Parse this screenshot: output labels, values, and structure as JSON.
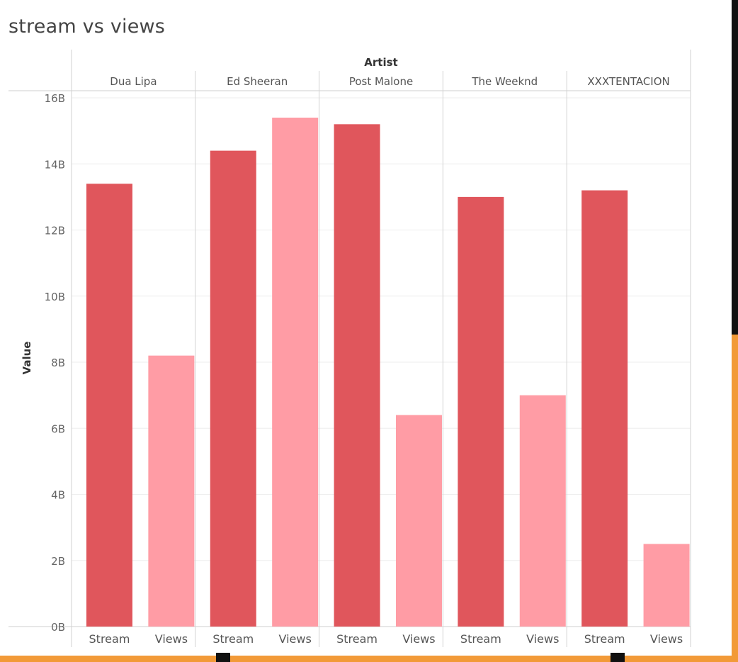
{
  "title": "stream vs views",
  "chart_data": {
    "type": "bar",
    "title": "stream vs views",
    "column_header": "Artist",
    "ylabel": "Value",
    "ylim": [
      0,
      16
    ],
    "yticks": [
      "0B",
      "2B",
      "4B",
      "6B",
      "8B",
      "10B",
      "12B",
      "14B",
      "16B"
    ],
    "measures": [
      "Stream",
      "Views"
    ],
    "groups": [
      {
        "artist": "Dua Lipa",
        "values": [
          13.4,
          8.2
        ]
      },
      {
        "artist": "Ed Sheeran",
        "values": [
          14.4,
          15.4
        ]
      },
      {
        "artist": "Post Malone",
        "values": [
          15.2,
          6.4
        ]
      },
      {
        "artist": "The Weeknd",
        "values": [
          13.0,
          7.0
        ]
      },
      {
        "artist": "XXXTENTACION",
        "values": [
          13.2,
          2.5
        ]
      }
    ],
    "colors": {
      "Stream": "#e0565c",
      "Views": "#ff9ca5"
    },
    "grid": true
  }
}
